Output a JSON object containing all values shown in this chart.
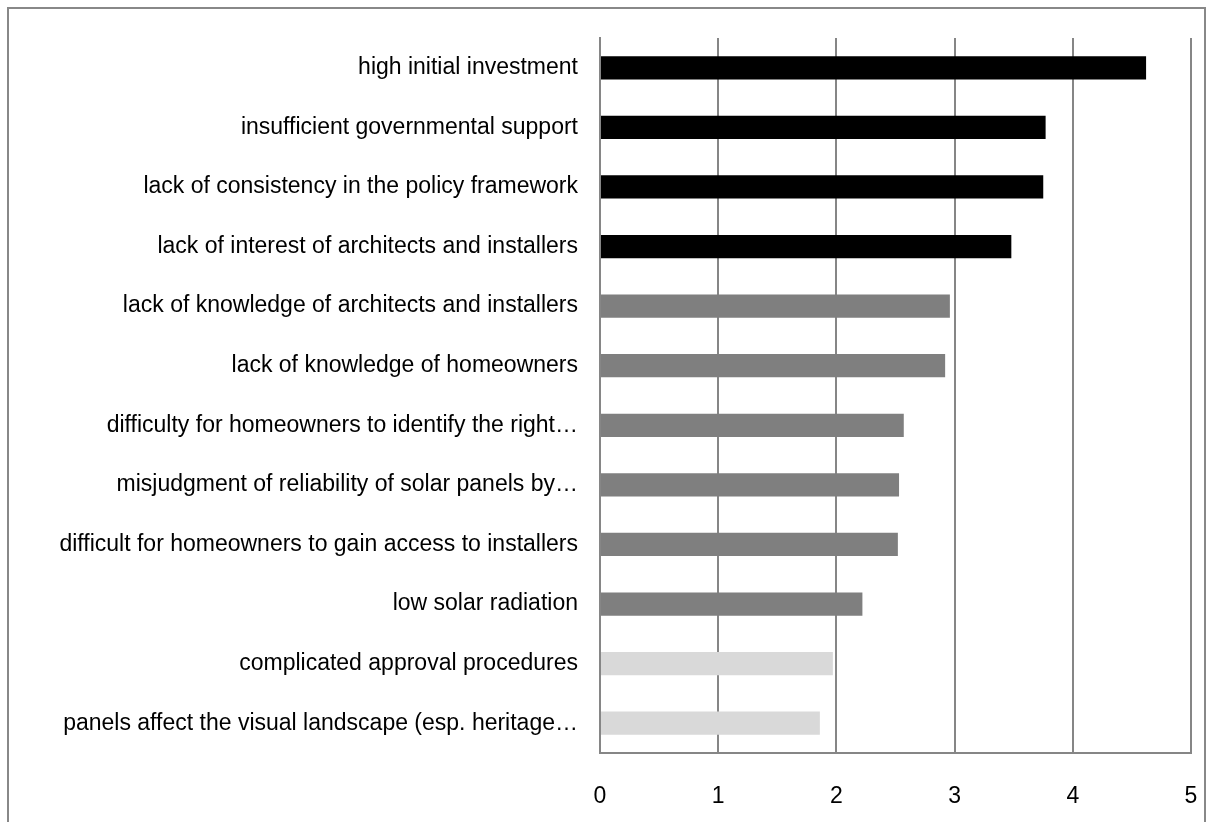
{
  "chart_data": {
    "type": "bar",
    "orientation": "horizontal",
    "categories": [
      "high initial investment",
      "insufficient governmental support",
      "lack of consistency in the policy framework",
      "lack of interest of architects and installers",
      "lack of knowledge of architects and installers",
      "lack of knowledge of homeowners",
      "difficulty for homeowners to identify the right…",
      "misjudgment of reliability of solar panels by…",
      "difficult for homeowners to gain access to installers",
      "low solar radiation",
      "complicated approval procedures",
      "panels affect the visual landscape (esp. heritage…"
    ],
    "values": [
      4.62,
      3.77,
      3.75,
      3.48,
      2.96,
      2.92,
      2.57,
      2.53,
      2.52,
      2.22,
      1.97,
      1.86
    ],
    "colors": [
      "#000000",
      "#000000",
      "#000000",
      "#000000",
      "#7f7f7f",
      "#7f7f7f",
      "#7f7f7f",
      "#7f7f7f",
      "#7f7f7f",
      "#7f7f7f",
      "#d9d9d9",
      "#d9d9d9"
    ],
    "xlim": [
      0,
      5
    ],
    "xticks": [
      0,
      1,
      2,
      3,
      4,
      5
    ],
    "grid": "x",
    "legend": false
  }
}
